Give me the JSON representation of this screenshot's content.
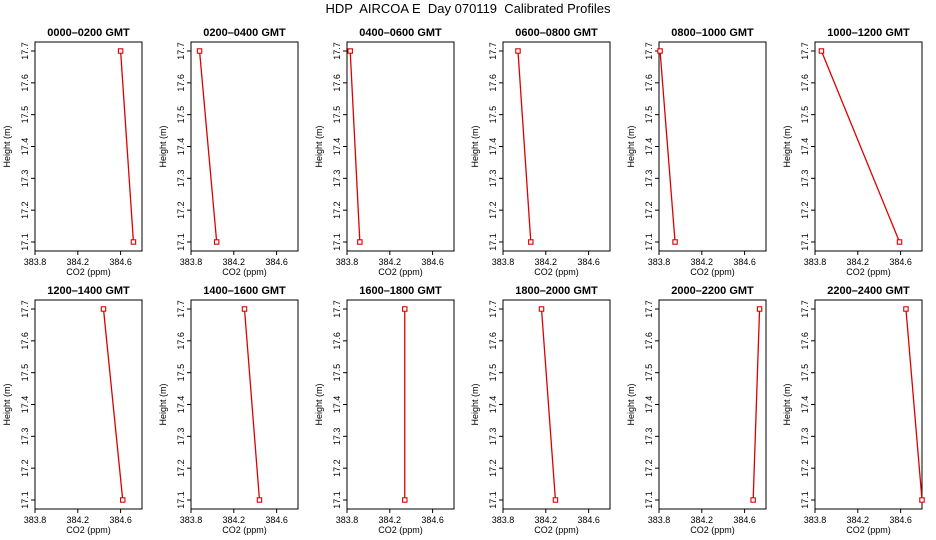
{
  "title": "HDP  AIRCOA E  Day 070119  Calibrated Profiles",
  "colors": {
    "series": "#dd0000",
    "frame": "#000000"
  },
  "chart_data": [
    {
      "type": "line",
      "title": "0000–0200 GMT",
      "xlabel": "CO2 (ppm)",
      "ylabel": "Height (m)",
      "xlim": [
        383.8,
        384.8
      ],
      "ylim": [
        17.1,
        17.7
      ],
      "xticks": [
        "383.8",
        "384.2",
        "384.6"
      ],
      "yticks": [
        "17.1",
        "17.2",
        "17.3",
        "17.4",
        "17.5",
        "17.6",
        "17.7"
      ],
      "x": [
        384.6,
        384.72
      ],
      "y": [
        17.7,
        17.1
      ]
    },
    {
      "type": "line",
      "title": "0200–0400 GMT",
      "xlabel": "CO2 (ppm)",
      "ylabel": "Height (m)",
      "xlim": [
        383.8,
        384.8
      ],
      "ylim": [
        17.1,
        17.7
      ],
      "xticks": [
        "383.8",
        "384.2",
        "384.6"
      ],
      "yticks": [
        "17.1",
        "17.2",
        "17.3",
        "17.4",
        "17.5",
        "17.6",
        "17.7"
      ],
      "x": [
        383.88,
        384.04
      ],
      "y": [
        17.7,
        17.1
      ]
    },
    {
      "type": "line",
      "title": "0400–0600 GMT",
      "xlabel": "CO2 (ppm)",
      "ylabel": "Height (m)",
      "xlim": [
        383.8,
        384.8
      ],
      "ylim": [
        17.1,
        17.7
      ],
      "xticks": [
        "383.8",
        "384.2",
        "384.6"
      ],
      "yticks": [
        "17.1",
        "17.2",
        "17.3",
        "17.4",
        "17.5",
        "17.6",
        "17.7"
      ],
      "x": [
        383.83,
        383.92
      ],
      "y": [
        17.7,
        17.1
      ]
    },
    {
      "type": "line",
      "title": "0600–0800 GMT",
      "xlabel": "CO2 (ppm)",
      "ylabel": "Height (m)",
      "xlim": [
        383.8,
        384.8
      ],
      "ylim": [
        17.1,
        17.7
      ],
      "xticks": [
        "383.8",
        "384.2",
        "384.6"
      ],
      "yticks": [
        "17.1",
        "17.2",
        "17.3",
        "17.4",
        "17.5",
        "17.6",
        "17.7"
      ],
      "x": [
        383.94,
        384.06
      ],
      "y": [
        17.7,
        17.1
      ]
    },
    {
      "type": "line",
      "title": "0800–1000 GMT",
      "xlabel": "CO2 (ppm)",
      "ylabel": "Height (m)",
      "xlim": [
        383.8,
        384.8
      ],
      "ylim": [
        17.1,
        17.7
      ],
      "xticks": [
        "383.8",
        "384.2",
        "384.6"
      ],
      "yticks": [
        "17.1",
        "17.2",
        "17.3",
        "17.4",
        "17.5",
        "17.6",
        "17.7"
      ],
      "x": [
        383.81,
        383.95
      ],
      "y": [
        17.7,
        17.1
      ]
    },
    {
      "type": "line",
      "title": "1000–1200 GMT",
      "xlabel": "CO2 (ppm)",
      "ylabel": "Height (m)",
      "xlim": [
        383.8,
        384.8
      ],
      "ylim": [
        17.1,
        17.7
      ],
      "xticks": [
        "383.8",
        "384.2",
        "384.6"
      ],
      "yticks": [
        "17.1",
        "17.2",
        "17.3",
        "17.4",
        "17.5",
        "17.6",
        "17.7"
      ],
      "x": [
        383.86,
        384.59
      ],
      "y": [
        17.7,
        17.1
      ]
    },
    {
      "type": "line",
      "title": "1200–1400 GMT",
      "xlabel": "CO2 (ppm)",
      "ylabel": "Height (m)",
      "xlim": [
        383.8,
        384.8
      ],
      "ylim": [
        17.1,
        17.7
      ],
      "xticks": [
        "383.8",
        "384.2",
        "384.6"
      ],
      "yticks": [
        "17.1",
        "17.2",
        "17.3",
        "17.4",
        "17.5",
        "17.6",
        "17.7"
      ],
      "x": [
        384.44,
        384.62
      ],
      "y": [
        17.7,
        17.1
      ]
    },
    {
      "type": "line",
      "title": "1400–1600 GMT",
      "xlabel": "CO2 (ppm)",
      "ylabel": "Height (m)",
      "xlim": [
        383.8,
        384.8
      ],
      "ylim": [
        17.1,
        17.7
      ],
      "xticks": [
        "383.8",
        "384.2",
        "384.6"
      ],
      "yticks": [
        "17.1",
        "17.2",
        "17.3",
        "17.4",
        "17.5",
        "17.6",
        "17.7"
      ],
      "x": [
        384.3,
        384.44
      ],
      "y": [
        17.7,
        17.1
      ]
    },
    {
      "type": "line",
      "title": "1600–1800 GMT",
      "xlabel": "CO2 (ppm)",
      "ylabel": "Height (m)",
      "xlim": [
        383.8,
        384.8
      ],
      "ylim": [
        17.1,
        17.7
      ],
      "xticks": [
        "383.8",
        "384.2",
        "384.6"
      ],
      "yticks": [
        "17.1",
        "17.2",
        "17.3",
        "17.4",
        "17.5",
        "17.6",
        "17.7"
      ],
      "x": [
        384.34,
        384.34
      ],
      "y": [
        17.7,
        17.1
      ]
    },
    {
      "type": "line",
      "title": "1800–2000 GMT",
      "xlabel": "CO2 (ppm)",
      "ylabel": "Height (m)",
      "xlim": [
        383.8,
        384.8
      ],
      "ylim": [
        17.1,
        17.7
      ],
      "xticks": [
        "383.8",
        "384.2",
        "384.6"
      ],
      "yticks": [
        "17.1",
        "17.2",
        "17.3",
        "17.4",
        "17.5",
        "17.6",
        "17.7"
      ],
      "x": [
        384.16,
        384.29
      ],
      "y": [
        17.7,
        17.1
      ]
    },
    {
      "type": "line",
      "title": "2000–2200 GMT",
      "xlabel": "CO2 (ppm)",
      "ylabel": "Height (m)",
      "xlim": [
        383.8,
        384.8
      ],
      "ylim": [
        17.1,
        17.7
      ],
      "xticks": [
        "383.8",
        "384.2",
        "384.6"
      ],
      "yticks": [
        "17.1",
        "17.2",
        "17.3",
        "17.4",
        "17.5",
        "17.6",
        "17.7"
      ],
      "x": [
        384.74,
        384.68
      ],
      "y": [
        17.7,
        17.1
      ]
    },
    {
      "type": "line",
      "title": "2200–2400 GMT",
      "xlabel": "CO2 (ppm)",
      "ylabel": "Height (m)",
      "xlim": [
        383.8,
        384.8
      ],
      "ylim": [
        17.1,
        17.7
      ],
      "xticks": [
        "383.8",
        "384.2",
        "384.6"
      ],
      "yticks": [
        "17.1",
        "17.2",
        "17.3",
        "17.4",
        "17.5",
        "17.6",
        "17.7"
      ],
      "x": [
        384.65,
        384.8
      ],
      "y": [
        17.7,
        17.1
      ]
    }
  ]
}
